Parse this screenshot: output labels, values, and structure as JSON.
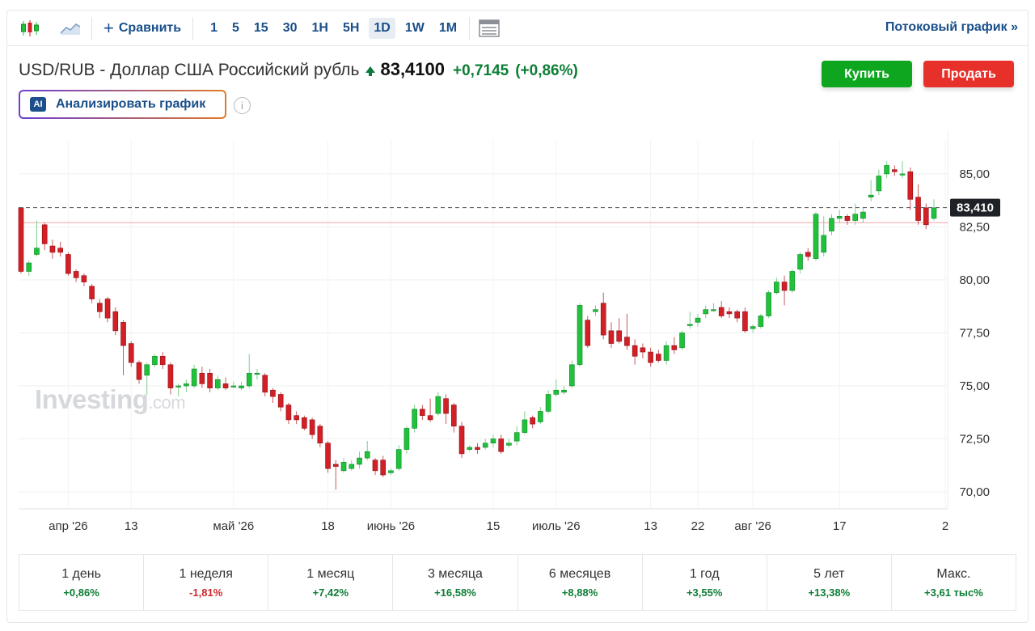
{
  "toolbar": {
    "compare_label": "Сравнить",
    "timeframes": [
      "1",
      "5",
      "15",
      "30",
      "1H",
      "5H",
      "1D",
      "1W",
      "1M"
    ],
    "active_timeframe": "1D",
    "stream_label": "Потоковый график »"
  },
  "header": {
    "symbol": "USD/RUB - Доллар США Российский рубль",
    "price": "83,4100",
    "change": "+0,7145",
    "change_pct": "(+0,86%)",
    "buy_label": "Купить",
    "sell_label": "Продать",
    "analyze_label": "Анализировать график",
    "ai_badge": "AI",
    "info_glyph": "i"
  },
  "watermark": {
    "brand": "Investing",
    "suffix": ".com"
  },
  "colors": {
    "up": "#1fc23a",
    "down": "#d31f26",
    "accent": "#1a4f8a",
    "buy": "#0ea61f",
    "sell": "#e8302a"
  },
  "chart_data": {
    "type": "candlestick",
    "x_tick_labels": [
      "апр '26",
      "13",
      "май '26",
      "18",
      "июнь '26",
      "15",
      "июль '26",
      "13",
      "22",
      "авг '26",
      "17",
      "2"
    ],
    "y_tick_labels": [
      "85,00",
      "82,50",
      "80,00",
      "77,50",
      "75,00",
      "72,50",
      "70,00"
    ],
    "y_ticks": [
      85,
      82.5,
      80,
      77.5,
      75,
      72.5,
      70
    ],
    "ylim": [
      69.2,
      86.6
    ],
    "last_price": 83.41,
    "last_price_label": "83,410",
    "reference_line": 82.7,
    "grid": true,
    "candles": [
      [
        83.4,
        80.4,
        83.4,
        80.3
      ],
      [
        80.4,
        80.8,
        80.9,
        80.2
      ],
      [
        81.2,
        81.5,
        82.8,
        81.1
      ],
      [
        82.6,
        81.7,
        82.7,
        81.4
      ],
      [
        81.6,
        81.3,
        81.9,
        81.0
      ],
      [
        81.5,
        81.3,
        81.8,
        81.1
      ],
      [
        81.2,
        80.3,
        81.3,
        80.2
      ],
      [
        80.4,
        80.1,
        80.5,
        79.9
      ],
      [
        80.2,
        79.9,
        80.3,
        79.7
      ],
      [
        79.7,
        79.1,
        79.8,
        78.9
      ],
      [
        78.9,
        78.5,
        79.1,
        78.2
      ],
      [
        79.1,
        78.2,
        79.2,
        78.0
      ],
      [
        78.5,
        77.6,
        78.7,
        77.4
      ],
      [
        78.0,
        76.9,
        78.1,
        75.5
      ],
      [
        77.0,
        76.1,
        77.1,
        75.9
      ],
      [
        76.1,
        75.3,
        76.2,
        75.1
      ],
      [
        75.5,
        76.0,
        76.1,
        74.6
      ],
      [
        76.0,
        76.4,
        76.5,
        75.9
      ],
      [
        76.4,
        76.0,
        76.6,
        75.8
      ],
      [
        76.0,
        74.9,
        76.1,
        74.6
      ],
      [
        75.0,
        75.0,
        75.1,
        74.5
      ],
      [
        75.0,
        75.1,
        75.3,
        74.7
      ],
      [
        75.0,
        75.8,
        76.0,
        74.9
      ],
      [
        75.6,
        75.1,
        75.9,
        74.9
      ],
      [
        75.6,
        74.9,
        75.8,
        74.7
      ],
      [
        74.9,
        75.3,
        75.5,
        74.8
      ],
      [
        75.1,
        74.9,
        75.4,
        74.8
      ],
      [
        75.0,
        75.0,
        75.2,
        74.9
      ],
      [
        74.9,
        75.0,
        75.2,
        74.8
      ],
      [
        75.0,
        75.6,
        76.5,
        74.9
      ],
      [
        75.6,
        75.6,
        75.8,
        75.3
      ],
      [
        75.5,
        74.7,
        75.6,
        74.5
      ],
      [
        74.8,
        74.5,
        74.9,
        74.2
      ],
      [
        74.6,
        74.0,
        74.7,
        73.8
      ],
      [
        74.1,
        73.4,
        74.2,
        73.2
      ],
      [
        73.6,
        73.4,
        73.8,
        73.2
      ],
      [
        73.5,
        73.0,
        73.6,
        72.9
      ],
      [
        73.4,
        72.7,
        73.5,
        72.5
      ],
      [
        73.1,
        72.3,
        73.2,
        72.1
      ],
      [
        72.3,
        71.1,
        72.4,
        70.9
      ],
      [
        71.3,
        71.2,
        71.5,
        70.1
      ],
      [
        71.0,
        71.4,
        71.6,
        70.9
      ],
      [
        71.1,
        71.3,
        71.5,
        71.0
      ],
      [
        71.3,
        71.6,
        71.9,
        71.1
      ],
      [
        71.6,
        71.9,
        72.4,
        71.5
      ],
      [
        71.5,
        71.0,
        71.6,
        70.8
      ],
      [
        71.5,
        70.8,
        71.7,
        70.7
      ],
      [
        70.9,
        71.0,
        71.1,
        70.8
      ],
      [
        71.1,
        72.0,
        72.2,
        71.0
      ],
      [
        72.0,
        73.0,
        73.1,
        71.8
      ],
      [
        73.0,
        73.9,
        74.1,
        72.8
      ],
      [
        73.9,
        73.6,
        74.1,
        73.4
      ],
      [
        73.6,
        73.4,
        74.4,
        73.3
      ],
      [
        73.7,
        74.5,
        74.7,
        73.6
      ],
      [
        74.4,
        73.7,
        74.6,
        73.2
      ],
      [
        74.1,
        73.1,
        74.2,
        72.8
      ],
      [
        73.1,
        71.8,
        73.3,
        71.6
      ],
      [
        72.0,
        72.1,
        72.2,
        71.9
      ],
      [
        72.1,
        72.0,
        72.3,
        71.8
      ],
      [
        72.1,
        72.3,
        72.5,
        72.0
      ],
      [
        72.3,
        72.5,
        72.7,
        72.1
      ],
      [
        72.5,
        71.9,
        72.7,
        71.8
      ],
      [
        72.2,
        72.3,
        72.5,
        72.1
      ],
      [
        72.4,
        72.8,
        73.1,
        72.2
      ],
      [
        72.8,
        73.4,
        73.8,
        72.7
      ],
      [
        73.5,
        73.2,
        73.6,
        73.0
      ],
      [
        73.3,
        73.8,
        74.0,
        73.2
      ],
      [
        73.8,
        74.6,
        74.8,
        73.7
      ],
      [
        74.6,
        74.8,
        75.3,
        74.5
      ],
      [
        74.7,
        74.8,
        75.0,
        74.6
      ],
      [
        75.0,
        76.0,
        76.2,
        74.9
      ],
      [
        76.0,
        78.8,
        78.9,
        75.9
      ],
      [
        78.1,
        76.9,
        78.3,
        76.8
      ],
      [
        78.5,
        78.6,
        78.8,
        78.3
      ],
      [
        78.9,
        77.4,
        79.4,
        77.2
      ],
      [
        77.6,
        77.0,
        78.0,
        76.8
      ],
      [
        77.6,
        77.1,
        78.2,
        77.0
      ],
      [
        77.3,
        76.9,
        78.4,
        76.7
      ],
      [
        76.9,
        76.4,
        77.2,
        76.0
      ],
      [
        76.8,
        76.6,
        77.0,
        76.3
      ],
      [
        76.6,
        76.1,
        76.8,
        75.9
      ],
      [
        76.5,
        76.2,
        76.7,
        76.1
      ],
      [
        76.2,
        76.9,
        77.1,
        76.0
      ],
      [
        76.9,
        76.7,
        77.3,
        76.5
      ],
      [
        76.8,
        77.5,
        77.6,
        76.7
      ],
      [
        77.9,
        77.9,
        78.5,
        77.7
      ],
      [
        78.0,
        78.2,
        78.4,
        77.8
      ],
      [
        78.4,
        78.6,
        78.8,
        78.2
      ],
      [
        78.6,
        78.6,
        78.9,
        78.5
      ],
      [
        78.7,
        78.3,
        79.0,
        78.2
      ],
      [
        78.5,
        78.4,
        78.7,
        78.2
      ],
      [
        78.5,
        78.2,
        78.6,
        78.0
      ],
      [
        78.5,
        77.6,
        78.7,
        77.5
      ],
      [
        77.7,
        77.8,
        77.9,
        77.5
      ],
      [
        77.8,
        78.3,
        78.4,
        77.7
      ],
      [
        78.3,
        79.4,
        79.5,
        78.2
      ],
      [
        79.4,
        79.9,
        80.1,
        79.3
      ],
      [
        79.9,
        79.5,
        80.2,
        78.8
      ],
      [
        79.5,
        80.4,
        80.5,
        79.4
      ],
      [
        80.5,
        81.2,
        81.3,
        80.3
      ],
      [
        81.3,
        81.1,
        81.5,
        80.9
      ],
      [
        81.0,
        83.1,
        83.2,
        80.9
      ],
      [
        81.3,
        82.1,
        83.0,
        81.1
      ],
      [
        82.3,
        82.9,
        83.1,
        82.1
      ],
      [
        82.9,
        83.0,
        83.3,
        82.7
      ],
      [
        83.0,
        82.8,
        83.1,
        82.6
      ],
      [
        82.8,
        83.1,
        83.6,
        82.6
      ],
      [
        82.9,
        83.2,
        83.4,
        82.7
      ],
      [
        83.9,
        84.0,
        84.7,
        83.7
      ],
      [
        84.2,
        84.9,
        85.2,
        84.0
      ],
      [
        85.0,
        85.4,
        85.6,
        84.8
      ],
      [
        85.2,
        85.1,
        85.4,
        84.9
      ],
      [
        85.0,
        85.0,
        85.6,
        84.8
      ],
      [
        85.1,
        83.8,
        85.3,
        83.3
      ],
      [
        83.9,
        82.8,
        84.5,
        82.6
      ],
      [
        83.4,
        82.6,
        83.6,
        82.4
      ],
      [
        82.9,
        83.4,
        83.8,
        82.8
      ]
    ]
  },
  "periods": [
    {
      "label": "1 день",
      "value": "+0,86%",
      "dir": "up"
    },
    {
      "label": "1 неделя",
      "value": "-1,81%",
      "dir": "down"
    },
    {
      "label": "1 месяц",
      "value": "+7,42%",
      "dir": "up"
    },
    {
      "label": "3 месяца",
      "value": "+16,58%",
      "dir": "up"
    },
    {
      "label": "6 месяцев",
      "value": "+8,88%",
      "dir": "up"
    },
    {
      "label": "1 год",
      "value": "+3,55%",
      "dir": "up"
    },
    {
      "label": "5 лет",
      "value": "+13,38%",
      "dir": "up"
    },
    {
      "label": "Макс.",
      "value": "+3,61 тыс%",
      "dir": "up"
    }
  ]
}
